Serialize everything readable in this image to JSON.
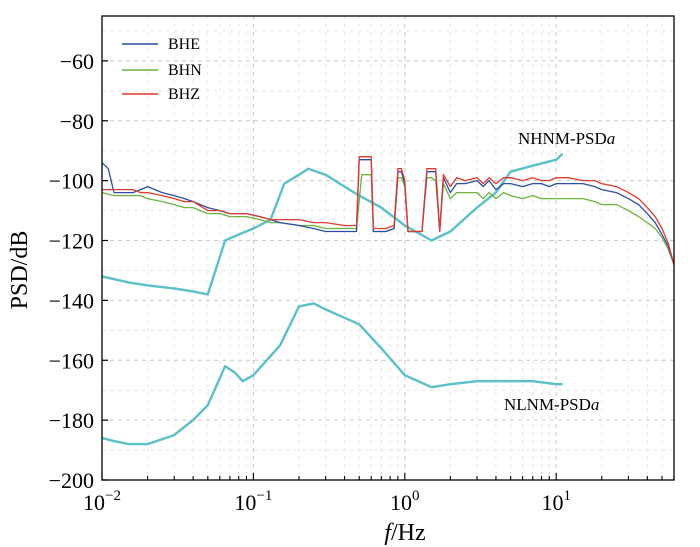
{
  "chart_data": {
    "type": "line",
    "xscale": "log",
    "xlim": [
      0.01,
      60
    ],
    "ylim": [
      -200,
      -45
    ],
    "xlabel_italic": "f",
    "xlabel_rest": "/Hz",
    "ylabel": "PSD/dB",
    "x_ticks": [
      {
        "value": 0.01,
        "base": "10",
        "exp": "−2"
      },
      {
        "value": 0.1,
        "base": "10",
        "exp": "−1"
      },
      {
        "value": 1,
        "base": "10",
        "exp": "0"
      },
      {
        "value": 10,
        "base": "10",
        "exp": "1"
      }
    ],
    "y_ticks": [
      {
        "value": -60,
        "label": "−60"
      },
      {
        "value": -80,
        "label": "−80"
      },
      {
        "value": -100,
        "label": "−100"
      },
      {
        "value": -120,
        "label": "−120"
      },
      {
        "value": -140,
        "label": "−140"
      },
      {
        "value": -160,
        "label": "−160"
      },
      {
        "value": -180,
        "label": "−180"
      },
      {
        "value": -200,
        "label": "−200"
      }
    ],
    "grid": true,
    "legend_position": "top-left",
    "series": [
      {
        "name": "BHE",
        "color": "#2e4ea6",
        "points": [
          [
            0.01,
            -94
          ],
          [
            0.011,
            -96
          ],
          [
            0.012,
            -104
          ],
          [
            0.014,
            -104
          ],
          [
            0.016,
            -104
          ],
          [
            0.018,
            -103
          ],
          [
            0.02,
            -102
          ],
          [
            0.025,
            -104
          ],
          [
            0.03,
            -105
          ],
          [
            0.035,
            -106
          ],
          [
            0.04,
            -107
          ],
          [
            0.05,
            -109
          ],
          [
            0.06,
            -110
          ],
          [
            0.07,
            -111
          ],
          [
            0.09,
            -111
          ],
          [
            0.11,
            -112
          ],
          [
            0.13,
            -113
          ],
          [
            0.15,
            -114
          ],
          [
            0.2,
            -115
          ],
          [
            0.25,
            -116
          ],
          [
            0.3,
            -117
          ],
          [
            0.4,
            -117
          ],
          [
            0.48,
            -117
          ],
          [
            0.5,
            -93
          ],
          [
            0.6,
            -93
          ],
          [
            0.62,
            -117
          ],
          [
            0.75,
            -117
          ],
          [
            0.85,
            -116
          ],
          [
            0.9,
            -97
          ],
          [
            0.95,
            -97
          ],
          [
            1.0,
            -101
          ],
          [
            1.05,
            -117
          ],
          [
            1.2,
            -117
          ],
          [
            1.3,
            -117
          ],
          [
            1.4,
            -97
          ],
          [
            1.5,
            -97
          ],
          [
            1.6,
            -97
          ],
          [
            1.7,
            -117
          ],
          [
            1.8,
            -99
          ],
          [
            2.0,
            -104
          ],
          [
            2.2,
            -101
          ],
          [
            2.5,
            -101
          ],
          [
            3.0,
            -100
          ],
          [
            3.3,
            -102
          ],
          [
            3.6,
            -100
          ],
          [
            4.0,
            -103
          ],
          [
            4.5,
            -101
          ],
          [
            5,
            -101
          ],
          [
            6,
            -102
          ],
          [
            7,
            -101
          ],
          [
            8,
            -101
          ],
          [
            9,
            -102
          ],
          [
            10,
            -101
          ],
          [
            12,
            -101
          ],
          [
            15,
            -101
          ],
          [
            18,
            -102
          ],
          [
            20,
            -103
          ],
          [
            25,
            -104
          ],
          [
            30,
            -106
          ],
          [
            35,
            -108
          ],
          [
            40,
            -111
          ],
          [
            45,
            -114
          ],
          [
            50,
            -118
          ],
          [
            55,
            -122
          ],
          [
            60,
            -128
          ]
        ]
      },
      {
        "name": "BHN",
        "color": "#6db33f",
        "points": [
          [
            0.01,
            -104
          ],
          [
            0.012,
            -105
          ],
          [
            0.015,
            -105
          ],
          [
            0.018,
            -105
          ],
          [
            0.02,
            -106
          ],
          [
            0.025,
            -107
          ],
          [
            0.03,
            -108
          ],
          [
            0.035,
            -109
          ],
          [
            0.04,
            -109
          ],
          [
            0.05,
            -111
          ],
          [
            0.06,
            -111
          ],
          [
            0.07,
            -112
          ],
          [
            0.09,
            -112
          ],
          [
            0.11,
            -113
          ],
          [
            0.13,
            -114
          ],
          [
            0.15,
            -114
          ],
          [
            0.2,
            -115
          ],
          [
            0.25,
            -115
          ],
          [
            0.3,
            -116
          ],
          [
            0.4,
            -116
          ],
          [
            0.48,
            -116
          ],
          [
            0.52,
            -98
          ],
          [
            0.6,
            -98
          ],
          [
            0.62,
            -117
          ],
          [
            0.75,
            -117
          ],
          [
            0.85,
            -116
          ],
          [
            0.9,
            -99
          ],
          [
            0.95,
            -99
          ],
          [
            1.0,
            -102
          ],
          [
            1.05,
            -117
          ],
          [
            1.2,
            -117
          ],
          [
            1.3,
            -117
          ],
          [
            1.4,
            -99
          ],
          [
            1.5,
            -99
          ],
          [
            1.6,
            -100
          ],
          [
            1.7,
            -116
          ],
          [
            1.8,
            -101
          ],
          [
            2.0,
            -106
          ],
          [
            2.2,
            -104
          ],
          [
            2.5,
            -104
          ],
          [
            3.0,
            -104
          ],
          [
            3.3,
            -106
          ],
          [
            3.6,
            -104
          ],
          [
            4.0,
            -106
          ],
          [
            4.5,
            -104
          ],
          [
            5,
            -105
          ],
          [
            6,
            -106
          ],
          [
            7,
            -105
          ],
          [
            8,
            -106
          ],
          [
            9,
            -106
          ],
          [
            10,
            -106
          ],
          [
            12,
            -106
          ],
          [
            15,
            -106
          ],
          [
            18,
            -107
          ],
          [
            20,
            -108
          ],
          [
            25,
            -108
          ],
          [
            30,
            -110
          ],
          [
            35,
            -112
          ],
          [
            40,
            -114
          ],
          [
            45,
            -116
          ],
          [
            50,
            -119
          ],
          [
            55,
            -123
          ],
          [
            60,
            -128
          ]
        ]
      },
      {
        "name": "BHZ",
        "color": "#e03a2e",
        "points": [
          [
            0.01,
            -103
          ],
          [
            0.012,
            -103
          ],
          [
            0.014,
            -103
          ],
          [
            0.016,
            -103
          ],
          [
            0.018,
            -104
          ],
          [
            0.02,
            -104
          ],
          [
            0.025,
            -105
          ],
          [
            0.03,
            -106
          ],
          [
            0.035,
            -107
          ],
          [
            0.04,
            -107
          ],
          [
            0.05,
            -110
          ],
          [
            0.06,
            -110
          ],
          [
            0.07,
            -111
          ],
          [
            0.09,
            -111
          ],
          [
            0.11,
            -112
          ],
          [
            0.13,
            -113
          ],
          [
            0.15,
            -113
          ],
          [
            0.2,
            -113
          ],
          [
            0.25,
            -114
          ],
          [
            0.3,
            -114
          ],
          [
            0.4,
            -115
          ],
          [
            0.48,
            -115
          ],
          [
            0.5,
            -92
          ],
          [
            0.6,
            -92
          ],
          [
            0.62,
            -116
          ],
          [
            0.75,
            -116
          ],
          [
            0.85,
            -115
          ],
          [
            0.9,
            -96
          ],
          [
            0.95,
            -96
          ],
          [
            1.0,
            -100
          ],
          [
            1.05,
            -117
          ],
          [
            1.2,
            -117
          ],
          [
            1.3,
            -117
          ],
          [
            1.4,
            -96
          ],
          [
            1.5,
            -96
          ],
          [
            1.6,
            -96
          ],
          [
            1.7,
            -117
          ],
          [
            1.8,
            -98
          ],
          [
            2.0,
            -102
          ],
          [
            2.2,
            -99
          ],
          [
            2.5,
            -100
          ],
          [
            3.0,
            -99
          ],
          [
            3.3,
            -101
          ],
          [
            3.6,
            -99
          ],
          [
            4.0,
            -101
          ],
          [
            4.5,
            -99
          ],
          [
            5,
            -99
          ],
          [
            6,
            -100
          ],
          [
            7,
            -99
          ],
          [
            8,
            -100
          ],
          [
            9,
            -100
          ],
          [
            10,
            -99
          ],
          [
            12,
            -99
          ],
          [
            15,
            -100
          ],
          [
            18,
            -100
          ],
          [
            20,
            -101
          ],
          [
            25,
            -102
          ],
          [
            30,
            -104
          ],
          [
            35,
            -106
          ],
          [
            40,
            -109
          ],
          [
            45,
            -112
          ],
          [
            50,
            -116
          ],
          [
            55,
            -121
          ],
          [
            60,
            -128
          ]
        ]
      },
      {
        "name": "NHNM-PSDa",
        "color": "#5bc0c8",
        "points": [
          [
            0.01,
            -132
          ],
          [
            0.015,
            -134
          ],
          [
            0.02,
            -135
          ],
          [
            0.03,
            -136
          ],
          [
            0.04,
            -137
          ],
          [
            0.05,
            -138
          ],
          [
            0.065,
            -120
          ],
          [
            0.08,
            -118
          ],
          [
            0.1,
            -116
          ],
          [
            0.13,
            -113
          ],
          [
            0.16,
            -101
          ],
          [
            0.2,
            -98
          ],
          [
            0.23,
            -96
          ],
          [
            0.3,
            -98
          ],
          [
            0.4,
            -102
          ],
          [
            0.5,
            -105
          ],
          [
            0.7,
            -109
          ],
          [
            1,
            -115
          ],
          [
            1.5,
            -120
          ],
          [
            2,
            -117
          ],
          [
            3,
            -109
          ],
          [
            4,
            -104
          ],
          [
            5,
            -97
          ],
          [
            7,
            -95
          ],
          [
            10,
            -93
          ],
          [
            11,
            -91
          ]
        ]
      },
      {
        "name": "NLNM-PSDa",
        "color": "#5bc0c8",
        "points": [
          [
            0.01,
            -186
          ],
          [
            0.012,
            -187
          ],
          [
            0.015,
            -188
          ],
          [
            0.02,
            -188
          ],
          [
            0.03,
            -185
          ],
          [
            0.04,
            -180
          ],
          [
            0.05,
            -175
          ],
          [
            0.065,
            -162
          ],
          [
            0.075,
            -164
          ],
          [
            0.085,
            -167
          ],
          [
            0.1,
            -165
          ],
          [
            0.15,
            -155
          ],
          [
            0.2,
            -142
          ],
          [
            0.25,
            -141
          ],
          [
            0.3,
            -143
          ],
          [
            0.5,
            -148
          ],
          [
            0.7,
            -156
          ],
          [
            1,
            -165
          ],
          [
            1.5,
            -169
          ],
          [
            2,
            -168
          ],
          [
            3,
            -167
          ],
          [
            5,
            -167
          ],
          [
            7,
            -167
          ],
          [
            10,
            -168
          ],
          [
            11,
            -168
          ]
        ]
      }
    ],
    "legend": [
      "BHE",
      "BHN",
      "BHZ"
    ],
    "annotations": [
      {
        "text_main": "NHNM-PSD",
        "text_italic": "a",
        "anchor_x": 9,
        "anchor_y": -87
      },
      {
        "text_main": "NLNM-PSD",
        "text_italic": "a",
        "anchor_x": 4.8,
        "anchor_y": -174
      }
    ]
  }
}
